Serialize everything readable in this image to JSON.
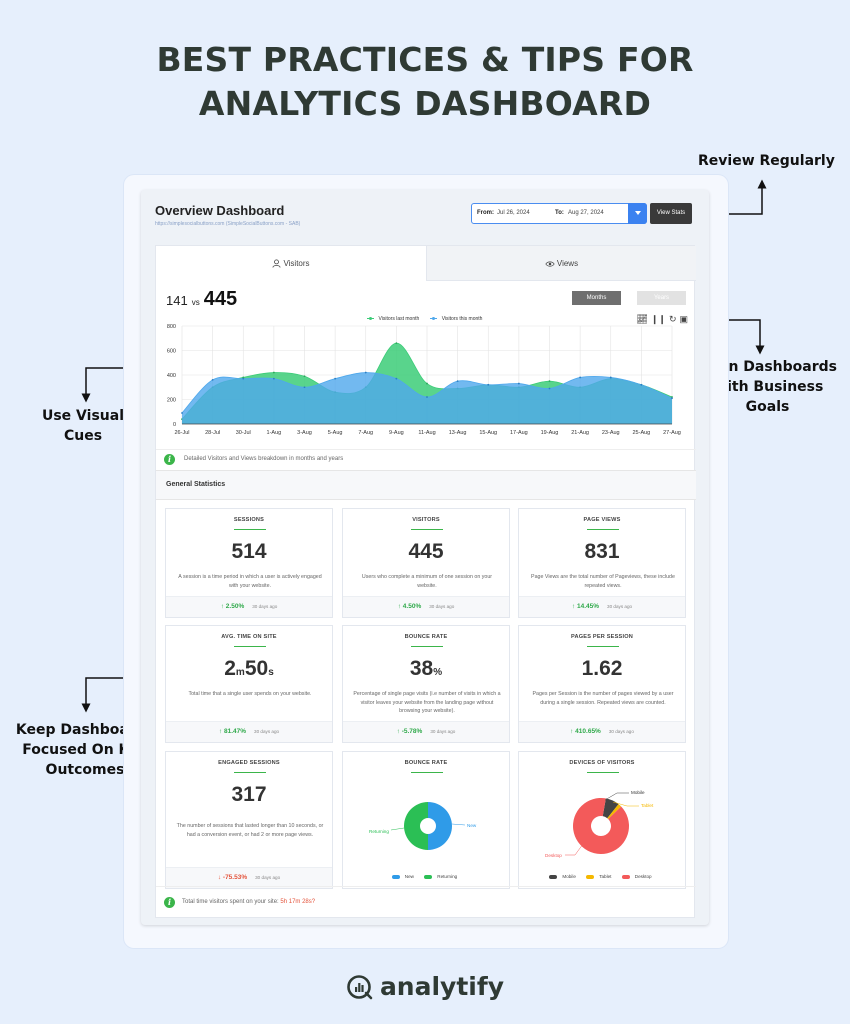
{
  "headline": {
    "line1": "BEST PRACTICES & TIPS FOR",
    "line2": "ANALYTICS DASHBOARD"
  },
  "callouts": {
    "review": "Review Regularly",
    "align": [
      "Align Dashboards",
      "With Business Goals"
    ],
    "visual": [
      "Use Visual",
      "Cues"
    ],
    "focus": [
      "Keep Dashboards",
      "Focused On Key",
      "Outcomes"
    ]
  },
  "dashboard": {
    "title": "Overview Dashboard",
    "url": "https://simplesocialbuttons.com (SimpleSocialButtons.com - SAB)",
    "from_label": "From:",
    "from_value": "Jul 26, 2024",
    "to_label": "To:",
    "to_value": "Aug 27, 2024",
    "view_button": "View Stats",
    "tabs": [
      {
        "label": "Visitors",
        "icon": "user-icon"
      },
      {
        "label": "Views",
        "icon": "eye-icon"
      }
    ],
    "compare": {
      "previous": "141",
      "vs": "vs",
      "current": "445"
    },
    "period_buttons": [
      "Months",
      "Years"
    ],
    "info_text": "Detailed Visitors and Views breakdown in months and years",
    "general_title": "General Statistics",
    "footer_text_before": "Total time visitors spent on your site:",
    "footer_text_value": "5h 17m 28s?"
  },
  "colors": {
    "green_series": "#3ccc78",
    "blue_series": "#4fa8ec",
    "positive": "#2fa94a",
    "negative": "#e4543c"
  },
  "chart_data": {
    "type": "area",
    "categories": [
      "26-Jul",
      "28-Jul",
      "30-Jul",
      "1-Aug",
      "3-Aug",
      "5-Aug",
      "7-Aug",
      "9-Aug",
      "11-Aug",
      "13-Aug",
      "15-Aug",
      "17-Aug",
      "19-Aug",
      "21-Aug",
      "23-Aug",
      "25-Aug",
      "27-Aug"
    ],
    "yticks": [
      "0",
      "200",
      "400",
      "600",
      "800"
    ],
    "ylim": [
      0,
      800
    ],
    "series": [
      {
        "name": "Visitors last month",
        "color": "#3ccc78",
        "values": [
          40,
          300,
          380,
          420,
          390,
          260,
          300,
          660,
          330,
          290,
          320,
          300,
          350,
          300,
          370,
          320,
          220
        ]
      },
      {
        "name": "Visitors this month",
        "color": "#4fa8ec",
        "values": [
          90,
          360,
          370,
          370,
          300,
          370,
          420,
          370,
          220,
          350,
          320,
          330,
          290,
          380,
          380,
          320,
          210
        ]
      }
    ],
    "grid": true,
    "legend": "top-center"
  },
  "stats": [
    {
      "title": "SESSIONS",
      "value": "514",
      "desc": "A session is a time period in which a user is actively engaged with your website.",
      "change": "2.50%",
      "dir": "up",
      "ago": "30 days ago"
    },
    {
      "title": "VISITORS",
      "value": "445",
      "desc": "Users who complete a minimum of one session on your website.",
      "change": "4.50%",
      "dir": "up",
      "ago": "30 days ago"
    },
    {
      "title": "PAGE VIEWS",
      "value": "831",
      "desc": "Page Views are the total number of Pageviews, these include repeated views.",
      "change": "14.45%",
      "dir": "up",
      "ago": "30 days ago"
    },
    {
      "title": "AVG. TIME ON SITE",
      "value_min": "2",
      "unit_min": "m",
      "value_sec": "50",
      "unit_sec": "s",
      "desc": "Total time that a single user spends on your website.",
      "change": "81.47%",
      "dir": "up",
      "ago": "30 days ago"
    },
    {
      "title": "BOUNCE RATE",
      "value": "38",
      "unit": "%",
      "desc": "Percentage of single page visits (i.e number of visits in which a visitor leaves your website from the landing page without browsing your website).",
      "change": "-5.78%",
      "dir": "up",
      "ago": "30 days ago"
    },
    {
      "title": "PAGES PER SESSION",
      "value": "1.62",
      "desc": "Pages per Session is the number of pages viewed by a user during a single session. Repeated views are counted.",
      "change": "410.65%",
      "dir": "up",
      "ago": "30 days ago"
    },
    {
      "title": "ENGAGED SESSIONS",
      "value": "317",
      "desc": "The number of sessions that lasted longer than 10 seconds, or had a conversion event, or had 2 or more page views.",
      "change": "-75.53%",
      "dir": "down",
      "ago": "30 days ago"
    }
  ],
  "bounce_donut": {
    "title": "BOUNCE RATE",
    "slices": [
      {
        "label": "New",
        "value": 50,
        "color": "#2f9be8"
      },
      {
        "label": "Returning",
        "value": 50,
        "color": "#2bbf55"
      }
    ]
  },
  "devices_donut": {
    "title": "DEVICES OF VISITORS",
    "slices": [
      {
        "label": "Mobile",
        "value": 8,
        "color": "#444444"
      },
      {
        "label": "Tablet",
        "value": 2,
        "color": "#f5b800"
      },
      {
        "label": "Desktop",
        "value": 90,
        "color": "#f35a5a"
      }
    ]
  },
  "brand": "analytify"
}
